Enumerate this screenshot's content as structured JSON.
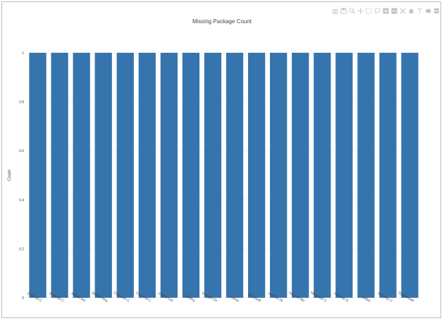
{
  "modebar": {
    "icons": [
      "camera-icon",
      "save-icon",
      "zoom-icon",
      "pan-icon",
      "box-select-icon",
      "lasso-icon",
      "zoom-in-icon",
      "zoom-out-icon",
      "autoscale-icon",
      "home-icon",
      "spike-lines-icon",
      "hover-closest-icon",
      "hover-compare-icon"
    ]
  },
  "chart_data": {
    "type": "bar",
    "title": "Missing Package Count",
    "xlabel": "",
    "ylabel": "Count",
    "ylim": [
      0,
      1
    ],
    "yticks": [
      "0",
      "0.2",
      "0.4",
      "0.6",
      "0.8",
      "1"
    ],
    "grid": true,
    "bar_color": "#3674ad",
    "categories": [
      "2015-05 C",
      "2018-08 C",
      "Adobe Acr",
      "Adobe Rea",
      "Common C",
      "Common L",
      "Digital Cer",
      "Firefox",
      "Google Ch",
      "iTunes",
      "Microsoft",
      "macOS Hi",
      "macOS Mo",
      "Microsoft C",
      "Remote D",
      "Safari",
      "Security U",
      "Systemwar"
    ],
    "values": [
      1,
      1,
      1,
      1,
      1,
      1,
      1,
      1,
      1,
      1,
      1,
      1,
      1,
      1,
      1,
      1,
      1,
      1
    ]
  }
}
